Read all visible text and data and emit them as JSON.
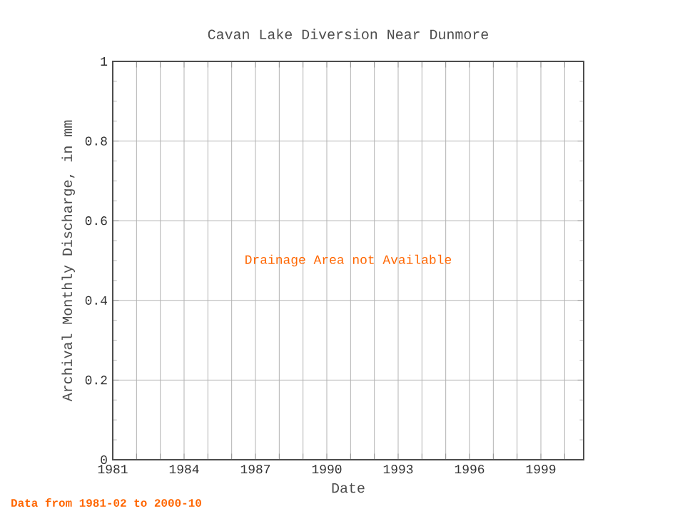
{
  "chart_data": {
    "type": "line",
    "title": "Cavan Lake Diversion Near Dunmore",
    "xlabel": "Date",
    "ylabel": "Archival Monthly Discharge, in mm",
    "annotations": [
      "Drainage Area not Available",
      "Data from 1981-02 to 2000-10"
    ],
    "xlim": [
      1981,
      2000.8
    ],
    "xticks": [
      1981,
      {
        "value": 1982,
        "label": null
      },
      {
        "value": 1983,
        "label": null
      },
      1984,
      {
        "value": 1985,
        "label": null
      },
      {
        "value": 1986,
        "label": null
      },
      1987,
      {
        "value": 1988,
        "label": null
      },
      {
        "value": 1989,
        "label": null
      },
      1990,
      {
        "value": 1991,
        "label": null
      },
      {
        "value": 1992,
        "label": null
      },
      1993,
      {
        "value": 1994,
        "label": null
      },
      {
        "value": 1995,
        "label": null
      },
      1996,
      {
        "value": 1997,
        "label": null
      },
      {
        "value": 1998,
        "label": null
      },
      1999,
      {
        "value": 2000,
        "label": null
      }
    ],
    "ylim": [
      0,
      1
    ],
    "yticks": [
      0,
      0.2,
      0.4,
      0.6,
      0.8,
      1
    ],
    "grid": true
  }
}
